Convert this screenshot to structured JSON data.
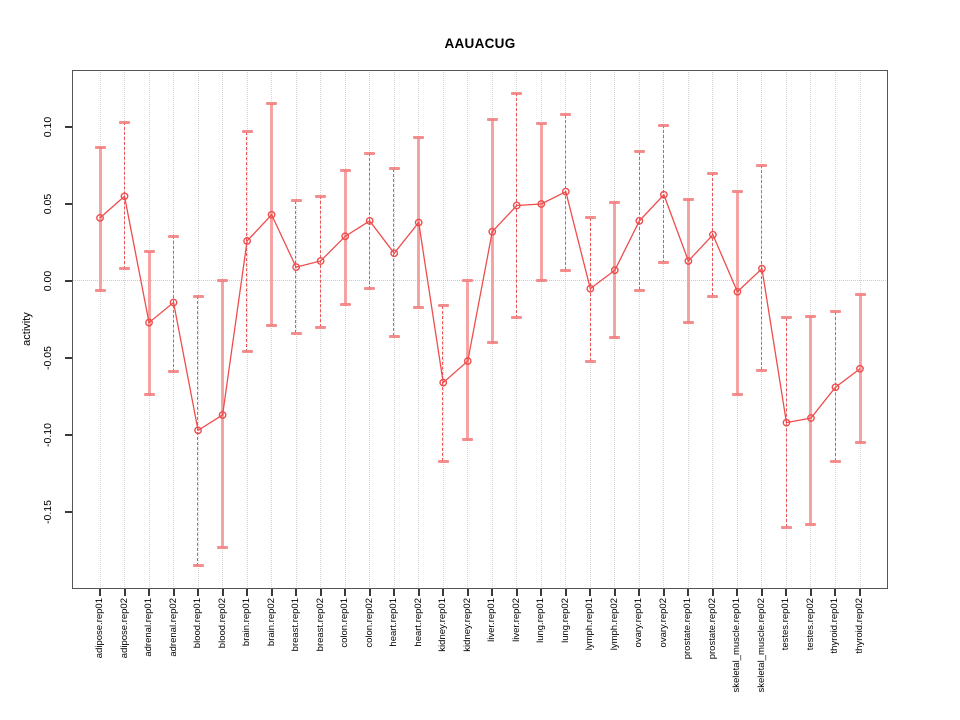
{
  "chart_data": {
    "type": "scatter",
    "subtype": "point-estimates-with-error-bars-connected-by-line",
    "title": "AAUACUG",
    "xlabel": "",
    "ylabel": "activity",
    "ylim": [
      -0.2,
      0.137
    ],
    "yticks": {
      "values": [
        0.1,
        0.05,
        0.0,
        -0.05,
        -0.1,
        -0.15
      ],
      "labels": [
        "0.10",
        "0.05",
        "0.00",
        "-0.05",
        "-0.10",
        "-0.15"
      ]
    },
    "zero_reference_line": 0.0,
    "grid": {
      "vertical_per_category": true,
      "style": "dotted",
      "horizontal": "only-at-zero"
    },
    "legend": {
      "shown": false
    },
    "categories": [
      "adipose.rep01",
      "adipose.rep02",
      "adrenal.rep01",
      "adrenal.rep02",
      "blood.rep01",
      "blood.rep02",
      "brain.rep01",
      "brain.rep02",
      "breast.rep01",
      "breast.rep02",
      "colon.rep01",
      "colon.rep02",
      "heart.rep01",
      "heart.rep02",
      "kidney.rep01",
      "kidney.rep02",
      "liver.rep01",
      "liver.rep02",
      "lung.rep01",
      "lung.rep02",
      "lymph.rep01",
      "lymph.rep02",
      "ovary.rep01",
      "ovary.rep02",
      "prostate.rep01",
      "prostate.rep02",
      "skeletal_muscle.rep01",
      "skeletal_muscle.rep02",
      "testes.rep01",
      "testes.rep02",
      "thyroid.rep01",
      "thyroid.rep02"
    ],
    "series": [
      {
        "name": "activity_mean",
        "values": [
          0.041,
          0.055,
          -0.027,
          -0.014,
          -0.097,
          -0.087,
          0.026,
          0.043,
          0.009,
          0.013,
          0.029,
          0.039,
          0.018,
          0.038,
          -0.066,
          -0.052,
          0.032,
          0.049,
          0.05,
          0.058,
          -0.005,
          0.007,
          0.039,
          0.056,
          0.013,
          0.03,
          -0.007,
          0.008,
          -0.092,
          -0.089,
          -0.069,
          -0.057
        ]
      },
      {
        "name": "ci_lower",
        "values": [
          -0.006,
          0.008,
          -0.074,
          -0.059,
          -0.185,
          -0.173,
          -0.046,
          -0.029,
          -0.034,
          -0.03,
          -0.015,
          -0.005,
          -0.036,
          -0.017,
          -0.117,
          -0.103,
          -0.04,
          -0.024,
          0.0,
          0.007,
          -0.052,
          -0.037,
          -0.006,
          0.012,
          -0.027,
          -0.01,
          -0.074,
          -0.058,
          -0.16,
          -0.158,
          -0.117,
          -0.105
        ]
      },
      {
        "name": "ci_upper",
        "values": [
          0.087,
          0.103,
          0.019,
          0.029,
          -0.01,
          0.0,
          0.097,
          0.115,
          0.052,
          0.055,
          0.072,
          0.083,
          0.073,
          0.093,
          -0.016,
          0.0,
          0.105,
          0.122,
          0.102,
          0.108,
          0.041,
          0.051,
          0.084,
          0.101,
          0.053,
          0.07,
          0.058,
          0.075,
          -0.024,
          -0.023,
          -0.02,
          -0.009
        ]
      }
    ],
    "error_bar_styles": [
      "solid",
      "dashed",
      "solid",
      "dashed",
      "dashed",
      "solid",
      "dashed",
      "solid",
      "dashed",
      "dashed",
      "solid",
      "dashed",
      "dashed",
      "solid",
      "dashed",
      "solid",
      "solid",
      "dashed",
      "solid",
      "dashed",
      "dashed",
      "solid",
      "dashed",
      "dashed",
      "solid",
      "dashed",
      "solid",
      "dashed",
      "dashed",
      "solid",
      "dashed",
      "solid"
    ],
    "colors": {
      "point_and_line": "#ee4d4d",
      "error_bar_pink": "#f69494",
      "error_bar_cap": "#f27d7d",
      "grid": "#d4d4d4",
      "zero_line": "#c8c8c8",
      "axis": "#555555",
      "text": "#000000"
    },
    "marker": "open-circle"
  }
}
